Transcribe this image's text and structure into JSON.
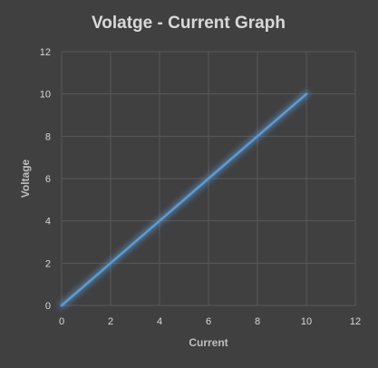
{
  "chart_data": {
    "type": "line",
    "title": "Volatge - Current Graph",
    "xlabel": "Current",
    "ylabel": "Voltage",
    "xlim": [
      0,
      12
    ],
    "ylim": [
      0,
      12
    ],
    "xticks": [
      0,
      2,
      4,
      6,
      8,
      10,
      12
    ],
    "yticks": [
      0,
      2,
      4,
      6,
      8,
      10,
      12
    ],
    "grid": true,
    "legend": "none",
    "series": [
      {
        "x": [
          0,
          2,
          4,
          6,
          8,
          10
        ],
        "y": [
          0,
          2,
          4,
          6,
          8,
          10
        ],
        "color": "#5b9bd5"
      }
    ]
  },
  "colors": {
    "background": "#404040",
    "grid": "#595959",
    "line": "#5b9bd5"
  }
}
